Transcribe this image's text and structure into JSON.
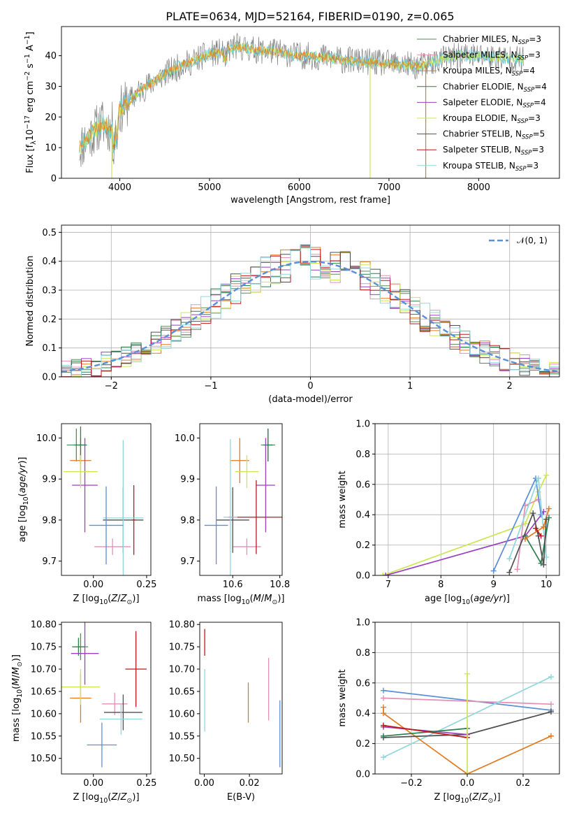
{
  "page": {
    "title": "PLATE=0634, MJD=52164, FIBERID=0190, z=0.065"
  },
  "colors": {
    "Chabrier MILES": "#5b8a5b",
    "Salpeter MILES": "#e58fb7",
    "Kroupa MILES": "#e07b20",
    "Chabrier ELODIE": "#2a7f4f",
    "Salpeter ELODIE": "#9b3fc2",
    "Kroupa ELODIE": "#cce650",
    "Chabrier STELIB": "#505050",
    "Salpeter STELIB": "#c0161a",
    "Kroupa STELIB": "#8fd7dd",
    "spectrum_gray": "#7f7f7f",
    "spectrum_cyan": "#6ccbd4",
    "gauss": "#5b8fd9"
  },
  "chart_data": [
    {
      "id": "spectrum",
      "type": "line",
      "title": "PLATE=0634, MJD=52164, FIBERID=0190, z=0.065",
      "xlabel": "wavelength [Angstrom, rest frame]",
      "ylabel": "Flux [f_λ 10^-17 erg cm^-2 s^-1 A^-1]",
      "xlim": [
        3350,
        8900
      ],
      "ylim": [
        0,
        49.5
      ],
      "xticks": [
        "4000",
        "5000",
        "6000",
        "7000",
        "8000"
      ],
      "yticks": [
        "0",
        "10",
        "20",
        "30",
        "40"
      ],
      "grid": false,
      "legend_position": "top-right",
      "legend": [
        {
          "label": "Chabrier MILES, N",
          "sub": "SSP",
          "tail": "=3"
        },
        {
          "label": "Salpeter MILES, N",
          "sub": "SSP",
          "tail": "=3"
        },
        {
          "label": "Kroupa MILES, N",
          "sub": "SSP",
          "tail": "=4"
        },
        {
          "label": "Chabrier ELODIE, N",
          "sub": "SSP",
          "tail": "=4"
        },
        {
          "label": "Salpeter ELODIE, N",
          "sub": "SSP",
          "tail": "=4"
        },
        {
          "label": "Kroupa ELODIE, N",
          "sub": "SSP",
          "tail": "=3"
        },
        {
          "label": "Chabrier STELIB, N",
          "sub": "SSP",
          "tail": "=5"
        },
        {
          "label": "Salpeter STELIB, N",
          "sub": "SSP",
          "tail": "=3"
        },
        {
          "label": "Kroupa STELIB, N",
          "sub": "SSP",
          "tail": "=3"
        }
      ],
      "continuum_x": [
        3550,
        3700,
        3800,
        3900,
        4000,
        4100,
        4200,
        4300,
        4400,
        4500,
        4600,
        4700,
        4800,
        4900,
        5000,
        5100,
        5200,
        5300,
        5400,
        5500,
        5600,
        5700,
        5800,
        5900,
        6000,
        6100,
        6200,
        6300,
        6400,
        6500,
        6600,
        6700,
        6800,
        6900,
        7000,
        7100,
        7200,
        7300,
        7400,
        7500,
        7600,
        7800,
        8000,
        8200,
        8400,
        8600
      ],
      "continuum_y": [
        10,
        15,
        18,
        16,
        22,
        25,
        28,
        30,
        32,
        34,
        35.5,
        37,
        38,
        39.5,
        40.5,
        41,
        42,
        43,
        42.5,
        42,
        41.5,
        41.5,
        41,
        40.5,
        40,
        40,
        39.5,
        39.5,
        39,
        38.5,
        38.5,
        38,
        38,
        37.5,
        37.5,
        37,
        37,
        36.5,
        37,
        38,
        39,
        40,
        40,
        39.5,
        39,
        38.5
      ],
      "spikes": [
        {
          "x": 3910,
          "y": 0,
          "color": "Kroupa ELODIE"
        },
        {
          "x": 6790,
          "y": 0,
          "color": "Kroupa ELODIE"
        },
        {
          "x": 7410,
          "y": 0,
          "color": "Kroupa MILES"
        }
      ]
    },
    {
      "id": "residuals",
      "type": "bar",
      "xlabel": "(data-model)/error",
      "ylabel": "Normed distribution",
      "xlim": [
        -2.5,
        2.5
      ],
      "ylim": [
        0,
        0.525
      ],
      "xticks": [
        "−2",
        "−1",
        "0",
        "1",
        "2"
      ],
      "yticks": [
        "0.0",
        "0.1",
        "0.2",
        "0.3",
        "0.4",
        "0.5"
      ],
      "grid": true,
      "bin_width": 0.1,
      "legend_position": "top-right",
      "legend": [
        "𝒩(0, 1)"
      ]
    },
    {
      "id": "age-vs-Z",
      "type": "scatter",
      "xlabel": "Z [log10(Z/Z⊙)]",
      "ylabel": "age [log10(age/yr)]",
      "xlim": [
        -0.15,
        0.27
      ],
      "ylim": [
        9.665,
        10.035
      ],
      "xticks": [
        "0.00",
        "0.25"
      ],
      "yticks": [
        "9.7",
        "9.8",
        "9.9",
        "10.0"
      ],
      "grid": false,
      "points": [
        {
          "series": "Chabrier MILES",
          "x": -0.08,
          "y": 9.983,
          "xerr": 0.045,
          "yerr": 0.04
        },
        {
          "series": "Salpeter MILES",
          "x": 0.09,
          "y": 9.735,
          "xerr": 0.085,
          "yerr": 0.02
        },
        {
          "series": "Kroupa MILES",
          "x": -0.06,
          "y": 9.945,
          "xerr": 0.05,
          "yerr": 0.055
        },
        {
          "series": "Chabrier ELODIE",
          "x": -0.06,
          "y": 9.983,
          "xerr": 0.03,
          "yerr": 0.045
        },
        {
          "series": "Salpeter ELODIE",
          "x": -0.04,
          "y": 9.885,
          "xerr": 0.06,
          "yerr": 0.115
        },
        {
          "series": "Kroupa ELODIE",
          "x": -0.06,
          "y": 9.918,
          "xerr": 0.08,
          "yerr": 0.04
        },
        {
          "series": "Chabrier STELIB",
          "x": 0.14,
          "y": 9.8,
          "xerr": 0.095,
          "yerr": 0.08
        },
        {
          "series": "Salpeter STELIB",
          "x": 0.19,
          "y": 9.8,
          "xerr": 0.01,
          "yerr": 0.085
        },
        {
          "series": "Kroupa STELIB",
          "x": 0.14,
          "y": 9.805,
          "xerr": 0.095,
          "yerr": 0.19
        },
        {
          "series": "gauss",
          "x": 0.06,
          "y": 9.787,
          "xerr": 0.08,
          "yerr": 0.095
        }
      ]
    },
    {
      "id": "age-vs-mass",
      "type": "scatter",
      "xlabel": "mass [log10(M/M⊙)]",
      "ylabel": "",
      "xlim": [
        10.46,
        10.81
      ],
      "ylim": [
        9.665,
        10.035
      ],
      "xticks": [
        "10.6",
        "10.8"
      ],
      "yticks": [
        "9.7",
        "9.8",
        "9.9",
        "10.0"
      ],
      "grid": false,
      "points": [
        {
          "series": "Chabrier MILES",
          "x": 10.75,
          "y": 9.983,
          "xerr": 0.03,
          "yerr": 0.04
        },
        {
          "series": "Salpeter MILES",
          "x": 10.66,
          "y": 9.735,
          "xerr": 0.06,
          "yerr": 0.02
        },
        {
          "series": "Kroupa MILES",
          "x": 10.63,
          "y": 9.945,
          "xerr": 0.04,
          "yerr": 0.055
        },
        {
          "series": "Chabrier ELODIE",
          "x": 10.75,
          "y": 9.983,
          "xerr": 0.02,
          "yerr": 0.04
        },
        {
          "series": "Salpeter ELODIE",
          "x": 10.74,
          "y": 9.885,
          "xerr": 0.04,
          "yerr": 0.115
        },
        {
          "series": "Kroupa ELODIE",
          "x": 10.66,
          "y": 9.918,
          "xerr": 0.05,
          "yerr": 0.04
        },
        {
          "series": "Chabrier STELIB",
          "x": 10.6,
          "y": 9.8,
          "xerr": 0.07,
          "yerr": 0.08
        },
        {
          "series": "Salpeter STELIB",
          "x": 10.7,
          "y": 9.807,
          "xerr": 0.12,
          "yerr": 0.09
        },
        {
          "series": "Kroupa STELIB",
          "x": 10.59,
          "y": 9.807,
          "xerr": 0.03,
          "yerr": 0.19
        },
        {
          "series": "gauss",
          "x": 10.53,
          "y": 9.787,
          "xerr": 0.05,
          "yerr": 0.095
        }
      ]
    },
    {
      "id": "mass-weight-vs-age",
      "type": "line",
      "xlabel": "age [log10(age/yr)]",
      "ylabel": "mass weight",
      "xlim": [
        6.75,
        10.25
      ],
      "ylim": [
        0,
        1
      ],
      "xticks": [
        "7",
        "8",
        "9",
        "10"
      ],
      "yticks": [
        "0.0",
        "0.2",
        "0.4",
        "0.6",
        "0.8",
        "1.0"
      ],
      "grid": true,
      "series": [
        {
          "name": "Kroupa ELODIE",
          "x": [
            6.9,
            9.6,
            9.85,
            10.0
          ],
          "y": [
            0.0,
            0.34,
            0.55,
            0.66
          ]
        },
        {
          "name": "Salpeter ELODIE",
          "x": [
            6.95,
            9.6,
            9.95
          ],
          "y": [
            0.0,
            0.26,
            0.42
          ]
        },
        {
          "name": "Salpeter MILES",
          "x": [
            9.45,
            9.6,
            9.85
          ],
          "y": [
            0.04,
            0.46,
            0.5
          ]
        },
        {
          "name": "gauss",
          "x": [
            9.0,
            9.8,
            9.9
          ],
          "y": [
            0.03,
            0.64,
            0.4
          ]
        },
        {
          "name": "Kroupa STELIB",
          "x": [
            9.3,
            9.85,
            10.0
          ],
          "y": [
            0.11,
            0.64,
            0.12
          ]
        },
        {
          "name": "Chabrier ELODIE",
          "x": [
            9.6,
            9.9,
            10.05
          ],
          "y": [
            0.26,
            0.08,
            0.38
          ]
        },
        {
          "name": "Kroupa MILES",
          "x": [
            9.6,
            9.95,
            10.05
          ],
          "y": [
            0.24,
            0.32,
            0.44
          ]
        },
        {
          "name": "Chabrier STELIB",
          "x": [
            9.3,
            9.75,
            9.85,
            9.95,
            10.0
          ],
          "y": [
            0.02,
            0.41,
            0.26,
            0.07,
            0.37
          ]
        },
        {
          "name": "Salpeter STELIB",
          "x": [
            9.8,
            9.9
          ],
          "y": [
            0.31,
            0.26
          ]
        }
      ]
    },
    {
      "id": "mass-vs-Z",
      "type": "scatter",
      "xlabel": "Z [log10(Z/Z⊙)]",
      "ylabel": "mass [log10(M/M⊙)]",
      "xlim": [
        -0.15,
        0.27
      ],
      "ylim": [
        10.465,
        10.805
      ],
      "xticks": [
        "0.00",
        "0.25"
      ],
      "yticks": [
        "10.50",
        "10.55",
        "10.60",
        "10.65",
        "10.70",
        "10.75",
        "10.80"
      ],
      "grid": false,
      "points": [
        {
          "series": "Chabrier MILES",
          "x": -0.06,
          "y": 10.75,
          "xerr": 0.035,
          "yerr": 0.03
        },
        {
          "series": "Salpeter MILES",
          "x": 0.1,
          "y": 10.622,
          "xerr": 0.06,
          "yerr": 0.025
        },
        {
          "series": "Kroupa MILES",
          "x": -0.06,
          "y": 10.635,
          "xerr": 0.05,
          "yerr": 0.055
        },
        {
          "series": "Chabrier ELODIE",
          "x": -0.07,
          "y": 10.75,
          "xerr": 0.03,
          "yerr": 0.02
        },
        {
          "series": "Salpeter ELODIE",
          "x": -0.04,
          "y": 10.735,
          "xerr": 0.065,
          "yerr": 0.07
        },
        {
          "series": "Kroupa ELODIE",
          "x": -0.06,
          "y": 10.66,
          "xerr": 0.09,
          "yerr": 0.04
        },
        {
          "series": "Chabrier STELIB",
          "x": 0.14,
          "y": 10.603,
          "xerr": 0.09,
          "yerr": 0.04
        },
        {
          "series": "Salpeter STELIB",
          "x": 0.2,
          "y": 10.7,
          "xerr": 0.05,
          "yerr": 0.085
        },
        {
          "series": "Kroupa STELIB",
          "x": 0.13,
          "y": 10.588,
          "xerr": 0.1,
          "yerr": 0.035
        },
        {
          "series": "gauss",
          "x": 0.04,
          "y": 10.53,
          "xerr": 0.07,
          "yerr": 0.05
        }
      ]
    },
    {
      "id": "mass-vs-EBV",
      "type": "scatter",
      "xlabel": "E(B-V)",
      "ylabel": "",
      "xlim": [
        -0.002,
        0.0345
      ],
      "ylim": [
        10.465,
        10.805
      ],
      "xticks": [
        "0.00",
        "0.02"
      ],
      "yticks": [
        "10.50",
        "10.55",
        "10.60",
        "10.65",
        "10.70",
        "10.75",
        "10.80"
      ],
      "grid": false,
      "points": [
        {
          "series": "Salpeter STELIB",
          "x": 0.0002,
          "y": 10.76,
          "yerr": 0.03
        },
        {
          "series": "Kroupa STELIB",
          "x": 0.0002,
          "y": 10.63,
          "yerr": 0.07
        },
        {
          "series": "Kroupa MILES",
          "x": 0.0195,
          "y": 10.625,
          "yerr": 0.045
        },
        {
          "series": "Salpeter MILES",
          "x": 0.0285,
          "y": 10.655,
          "yerr": 0.07
        },
        {
          "series": "gauss",
          "x": 0.0335,
          "y": 10.555,
          "yerr": 0.075
        }
      ]
    },
    {
      "id": "mass-weight-vs-Z",
      "type": "line",
      "xlabel": "Z [log10(Z/Z⊙)]",
      "ylabel": "mass weight",
      "xlim": [
        -0.33,
        0.33
      ],
      "ylim": [
        0,
        1
      ],
      "xticks": [
        "−0.2",
        "0.0",
        "0.2"
      ],
      "yticks": [
        "0.0",
        "0.2",
        "0.4",
        "0.6",
        "0.8",
        "1.0"
      ],
      "grid": true,
      "series": [
        {
          "name": "gauss",
          "x": [
            -0.3,
            0.3
          ],
          "y": [
            0.55,
            0.42
          ]
        },
        {
          "name": "Salpeter MILES",
          "x": [
            -0.3,
            0.3
          ],
          "y": [
            0.5,
            0.46
          ]
        },
        {
          "name": "Kroupa STELIB",
          "x": [
            -0.3,
            0.3
          ],
          "y": [
            0.11,
            0.64
          ]
        },
        {
          "name": "Kroupa MILES",
          "x": [
            -0.3,
            -0.3,
            0.0,
            0.3
          ],
          "y": [
            0.44,
            0.4,
            0.0,
            0.25
          ]
        },
        {
          "name": "Chabrier STELIB",
          "x": [
            -0.3,
            0.0,
            0.3
          ],
          "y": [
            0.24,
            0.26,
            0.41
          ]
        },
        {
          "name": "Salpeter ELODIE",
          "x": [
            -0.3,
            0.0
          ],
          "y": [
            0.31,
            0.26
          ]
        },
        {
          "name": "Chabrier ELODIE",
          "x": [
            -0.3,
            0.0
          ],
          "y": [
            0.25,
            0.3
          ]
        },
        {
          "name": "Salpeter STELIB",
          "x": [
            -0.3,
            0.0
          ],
          "y": [
            0.32,
            0.24
          ]
        },
        {
          "name": "Kroupa ELODIE",
          "x": [
            0.0,
            0.0
          ],
          "y": [
            0.0,
            0.66
          ]
        }
      ]
    }
  ]
}
